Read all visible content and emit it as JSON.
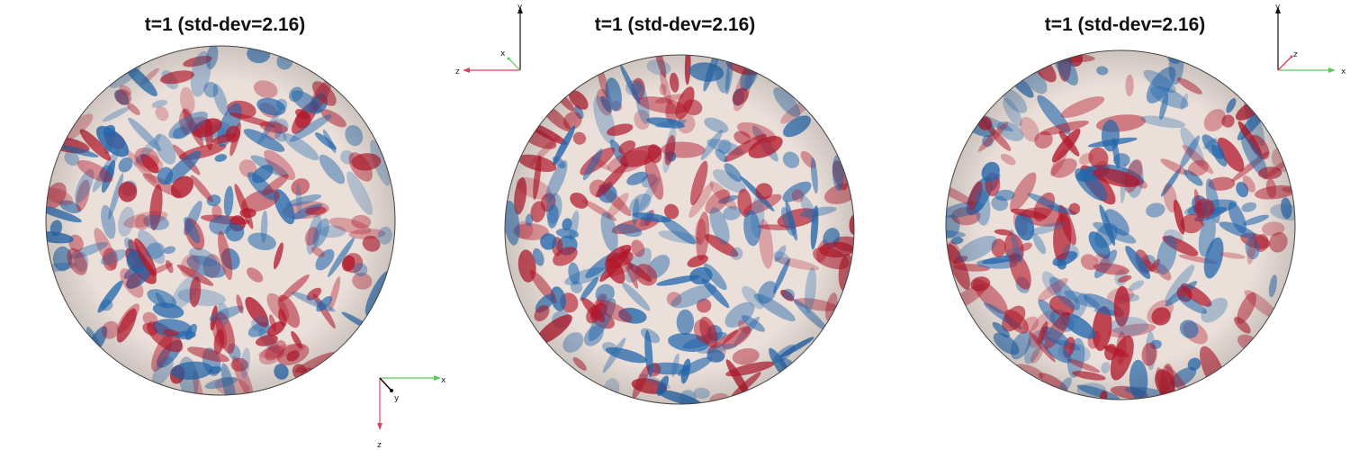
{
  "panels": [
    {
      "title": "t=1  (std-dev=2.16)",
      "axes": {
        "h": "x",
        "depth": "y",
        "v": "z"
      }
    },
    {
      "title": "t=1  (std-dev=2.16)",
      "axes": {
        "up": "y",
        "left": "z",
        "diag": "x"
      }
    },
    {
      "title": "t=1  (std-dev=2.16)",
      "axes": {
        "up": "y",
        "right": "x",
        "diag": "z"
      }
    }
  ],
  "colors": {
    "positive": "#b2182b",
    "negative": "#2166ac",
    "neutral": "#eadfd9",
    "axis_x": "#5cc85c",
    "axis_y": "#111111",
    "axis_z": "#d64560"
  }
}
